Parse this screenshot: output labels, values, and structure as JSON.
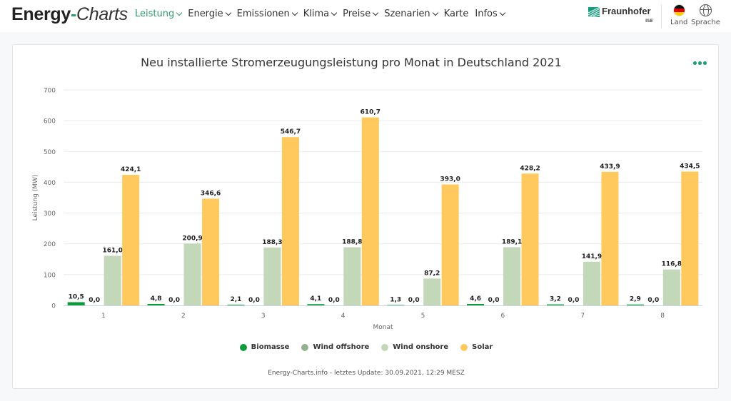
{
  "header": {
    "logo_main": "Energy",
    "logo_dash": "-",
    "logo_italic": "Charts",
    "nav": [
      {
        "label": "Leistung",
        "dropdown": true,
        "active": true
      },
      {
        "label": "Energie",
        "dropdown": true,
        "active": false
      },
      {
        "label": "Emissionen",
        "dropdown": true,
        "active": false
      },
      {
        "label": "Klima",
        "dropdown": true,
        "active": false
      },
      {
        "label": "Preise",
        "dropdown": true,
        "active": false
      },
      {
        "label": "Szenarien",
        "dropdown": true,
        "active": false
      },
      {
        "label": "Karte",
        "dropdown": false,
        "active": false
      },
      {
        "label": "Infos",
        "dropdown": true,
        "active": false
      }
    ],
    "partner_name": "Fraunhofer",
    "partner_sub": "ISE",
    "country_label": "Land",
    "language_label": "Sprache",
    "accent_color": "#2e9b6a"
  },
  "chart_data": {
    "type": "bar",
    "title": "Neu installierte Stromerzeugungsleistung pro Monat in Deutschland 2021",
    "xlabel": "Monat",
    "ylabel": "Leistung (MW)",
    "ylim": [
      0,
      700
    ],
    "yticks": [
      0,
      100,
      200,
      300,
      400,
      500,
      600,
      700
    ],
    "grid": true,
    "legend_position": "bottom",
    "categories": [
      "1",
      "2",
      "3",
      "4",
      "5",
      "6",
      "7",
      "8"
    ],
    "series": [
      {
        "name": "Biomasse",
        "color": "#0f9a3c",
        "values": [
          10.5,
          4.8,
          2.1,
          4.1,
          1.3,
          4.6,
          3.2,
          2.9
        ],
        "labels": [
          "10,5",
          "4,8",
          "2,1",
          "4,1",
          "1,3",
          "4,6",
          "3,2",
          "2,9"
        ]
      },
      {
        "name": "Wind offshore",
        "color": "#93b28f",
        "values": [
          0.0,
          0.0,
          0.0,
          0.0,
          0.0,
          0.0,
          0.0,
          0.0
        ],
        "labels": [
          "0,0",
          "0,0",
          "0,0",
          "0,0",
          "0,0",
          "0,0",
          "0,0",
          "0,0"
        ]
      },
      {
        "name": "Wind onshore",
        "color": "#c2d8b9",
        "values": [
          161.0,
          200.9,
          188.3,
          188.8,
          87.2,
          189.1,
          141.9,
          116.8
        ],
        "labels": [
          "161,0",
          "200,9",
          "188,3",
          "188,8",
          "87,2",
          "189,1",
          "141,9",
          "116,8"
        ]
      },
      {
        "name": "Solar",
        "color": "#ffc95e",
        "values": [
          424.1,
          346.6,
          546.7,
          610.7,
          393.0,
          428.2,
          433.9,
          434.5
        ],
        "labels": [
          "424,1",
          "346,6",
          "546,7",
          "610,7",
          "393,0",
          "428,2",
          "433,9",
          "434,5"
        ]
      }
    ]
  },
  "footer": {
    "text": "Energy-Charts.info - letztes Update: 30.09.2021, 12:29 MESZ"
  },
  "menu_color": "#1a9f6e"
}
